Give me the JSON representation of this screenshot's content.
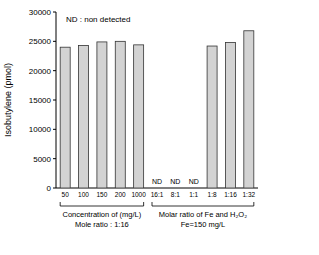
{
  "chart_data": {
    "type": "bar",
    "y_label": "Isobutylene (pmol)",
    "annotation": "ND : non detected",
    "categories": [
      "50",
      "100",
      "150",
      "200",
      "1000",
      "16:1",
      "8:1",
      "1:1",
      "1:8",
      "1:16",
      "1:32"
    ],
    "values": [
      24000,
      24300,
      24900,
      25000,
      24400,
      null,
      null,
      null,
      24200,
      24800,
      26800
    ],
    "value_labels": [
      null,
      null,
      null,
      null,
      null,
      "ND",
      "ND",
      "ND",
      null,
      null,
      null
    ],
    "groups": [
      {
        "label": "Concentration of  (mg/L)",
        "sublabel": "Mole ratio : 1:16",
        "start": 0,
        "end": 4
      },
      {
        "label": "Molar ratio of Fe and H₂O₂",
        "sublabel": "Fe=150 mg/L",
        "start": 5,
        "end": 10
      }
    ],
    "color": "#d3d3d3",
    "ylim": [
      0,
      30000
    ],
    "yticks": [
      0,
      5000,
      10000,
      15000,
      20000,
      25000,
      30000
    ],
    "grid": false
  }
}
